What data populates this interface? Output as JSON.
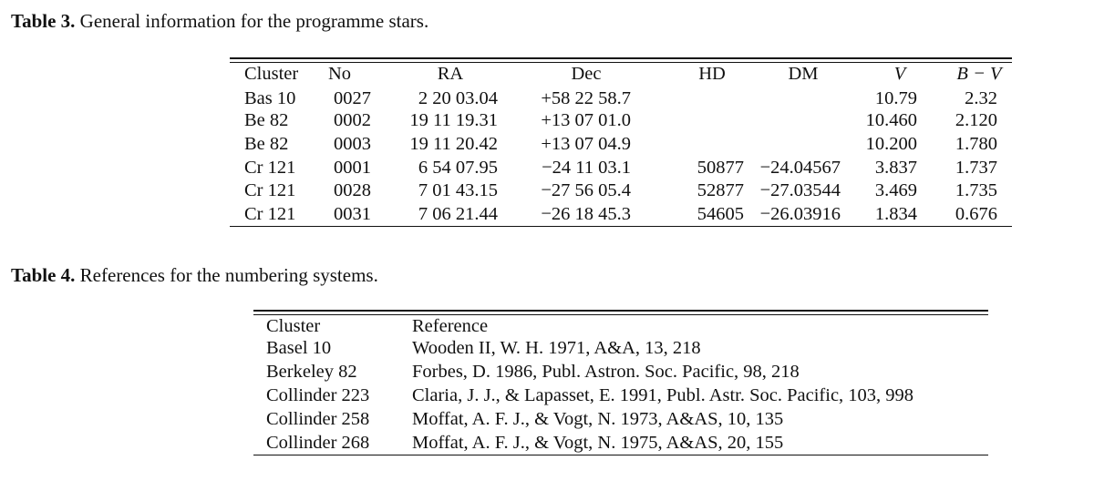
{
  "table3": {
    "caption_label": "Table 3.",
    "caption_text": " General information for the programme stars.",
    "headers": [
      "Cluster",
      "No",
      "RA",
      "Dec",
      "HD",
      "DM",
      "V",
      "B − V"
    ],
    "rows": [
      [
        "Bas 10",
        "0027",
        "2 20 03.04",
        "+58 22 58.7",
        "",
        "",
        "10.79",
        "2.32"
      ],
      [
        "Be 82",
        "0002",
        "19 11 19.31",
        "+13 07 01.0",
        "",
        "",
        "10.460",
        "2.120"
      ],
      [
        "Be 82",
        "0003",
        "19 11 20.42",
        "+13 07 04.9",
        "",
        "",
        "10.200",
        "1.780"
      ],
      [
        "Cr 121",
        "0001",
        "6 54 07.95",
        "−24 11 03.1",
        "50877",
        "−24.04567",
        "3.837",
        "1.737"
      ],
      [
        "Cr 121",
        "0028",
        "7 01 43.15",
        "−27 56 05.4",
        "52877",
        "−27.03544",
        "3.469",
        "1.735"
      ],
      [
        "Cr 121",
        "0031",
        "7 06 21.44",
        "−26 18 45.3",
        "54605",
        "−26.03916",
        "1.834",
        "0.676"
      ]
    ]
  },
  "table4": {
    "caption_label": "Table 4.",
    "caption_text": " References for the numbering systems.",
    "headers": [
      "Cluster",
      "Reference"
    ],
    "rows": [
      [
        "Basel 10",
        "Wooden II, W. H. 1971, A&A, 13, 218"
      ],
      [
        "Berkeley 82",
        "Forbes, D. 1986, Publ. Astron. Soc. Pacific, 98, 218"
      ],
      [
        "Collinder 223",
        "Claria, J. J., & Lapasset, E. 1991, Publ. Astr. Soc. Pacific, 103, 998"
      ],
      [
        "Collinder 258",
        "Moffat, A. F. J., & Vogt, N. 1973, A&AS, 10, 135"
      ],
      [
        "Collinder 268",
        "Moffat, A. F. J., & Vogt, N. 1975, A&AS, 20, 155"
      ]
    ]
  }
}
